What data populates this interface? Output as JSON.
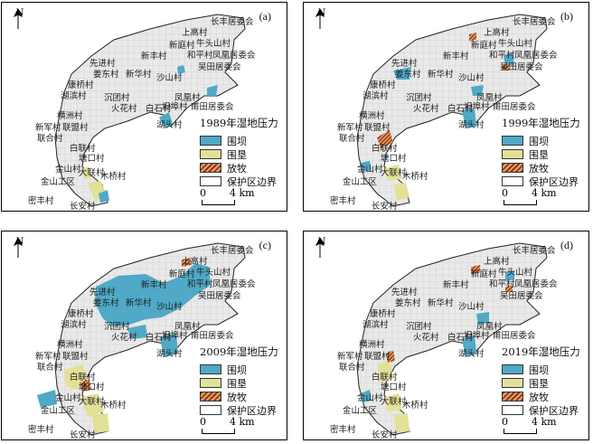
{
  "legend_items": [
    {
      "key": "weiba",
      "label": "围坝",
      "color": "#4fa9c7"
    },
    {
      "key": "weiken",
      "label": "围垦",
      "color": "#e3e098"
    },
    {
      "key": "fangmu",
      "label": "放牧",
      "color": "#a0461a"
    },
    {
      "key": "boundary",
      "label": "保护区边界",
      "color": "#ffffff"
    }
  ],
  "scale": {
    "zero": "0",
    "distance": "4 km"
  },
  "north_label": "N",
  "villages": [
    "上高村",
    "长丰居委会",
    "新庭村",
    "牛头山村",
    "新丰村",
    "和平村",
    "凤凰居委会",
    "先进村",
    "吴田居委会",
    "姜东村",
    "新华村",
    "沙山村",
    "康桥村",
    "湖滨村",
    "沉团村",
    "凤凰村",
    "火花村",
    "白石村",
    "坦埠村",
    "甫田居委会",
    "横洲村",
    "湖头村",
    "新军村",
    "联盟村",
    "联合村",
    "白联村",
    "塘口村",
    "金山村",
    "大联村",
    "木桥村",
    "金山工区",
    "密丰村",
    "长安村"
  ],
  "panels": [
    {
      "label": "(a)",
      "title": "1989年湿地压力"
    },
    {
      "label": "(b)",
      "title": "1999年湿地压力"
    },
    {
      "label": "(c)",
      "title": "2009年湿地压力"
    },
    {
      "label": "(d)",
      "title": "2019年湿地压力"
    }
  ]
}
